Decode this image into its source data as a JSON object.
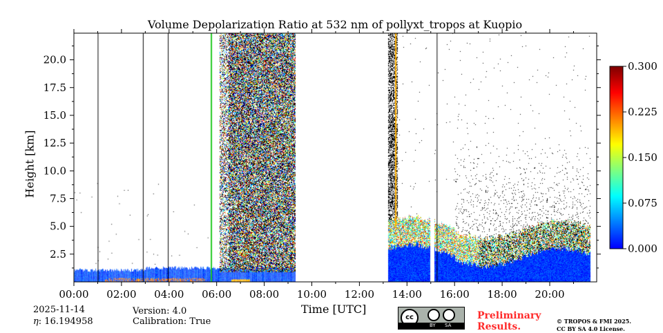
{
  "title": "Volume Depolarization Ratio at 532 nm of pollyxt_tropos at Kuopio",
  "chart_data": {
    "type": "heatmap",
    "title": "Volume Depolarization Ratio at 532 nm of pollyxt_tropos at Kuopio",
    "xlabel": "Time [UTC]",
    "ylabel": "Height [km]",
    "xlim_hours": [
      0,
      22
    ],
    "ylim": [
      0,
      22.4
    ],
    "x_ticks": [
      "00:00",
      "02:00",
      "04:00",
      "06:00",
      "08:00",
      "10:00",
      "12:00",
      "14:00",
      "16:00",
      "18:00",
      "20:00"
    ],
    "y_ticks": [
      "2.5",
      "5.0",
      "7.5",
      "10.0",
      "12.5",
      "15.0",
      "17.5",
      "20.0"
    ],
    "colorbar": {
      "range": [
        0,
        0.3
      ],
      "ticks": [
        "0.000",
        "0.075",
        "0.150",
        "0.225",
        "0.300"
      ],
      "colormap": "jet"
    }
  },
  "footer": {
    "date": "2025-11-14",
    "eta_label": "η",
    "eta": ": 16.194958",
    "version": "Version: 4.0",
    "calibration": "Calibration: True",
    "preliminary": [
      "Preliminary",
      "Results."
    ],
    "copyright": [
      "© TROPOS & FMI 2025.",
      "CC BY SA 4.0 License."
    ],
    "cc": [
      "cc",
      "BY",
      "SA"
    ]
  }
}
